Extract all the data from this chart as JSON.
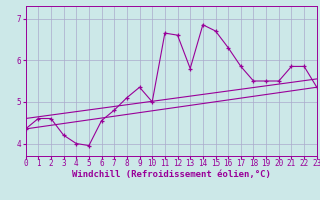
{
  "xlabel": "Windchill (Refroidissement éolien,°C)",
  "xlim": [
    0,
    23
  ],
  "ylim": [
    3.7,
    7.3
  ],
  "xticks": [
    0,
    1,
    2,
    3,
    4,
    5,
    6,
    7,
    8,
    9,
    10,
    11,
    12,
    13,
    14,
    15,
    16,
    17,
    18,
    19,
    20,
    21,
    22,
    23
  ],
  "yticks": [
    4,
    5,
    6,
    7
  ],
  "background_color": "#cce8e8",
  "grid_color": "#aaaacc",
  "line_color": "#990099",
  "main_data_x": [
    0,
    1,
    2,
    3,
    4,
    5,
    6,
    7,
    8,
    9,
    10,
    11,
    12,
    13,
    14,
    15,
    16,
    17,
    18,
    19,
    20,
    21,
    22,
    23
  ],
  "main_data_y": [
    4.35,
    4.6,
    4.6,
    4.2,
    4.0,
    3.95,
    4.55,
    4.8,
    5.1,
    5.35,
    5.0,
    6.65,
    6.6,
    5.8,
    6.85,
    6.7,
    6.3,
    5.85,
    5.5,
    5.5,
    5.5,
    5.85,
    5.85,
    5.35
  ],
  "trend1_x": [
    0,
    23
  ],
  "trend1_y": [
    4.35,
    5.35
  ],
  "trend2_x": [
    0,
    23
  ],
  "trend2_y": [
    4.6,
    5.55
  ],
  "fontsize_label": 6.5,
  "fontsize_tick": 5.5
}
